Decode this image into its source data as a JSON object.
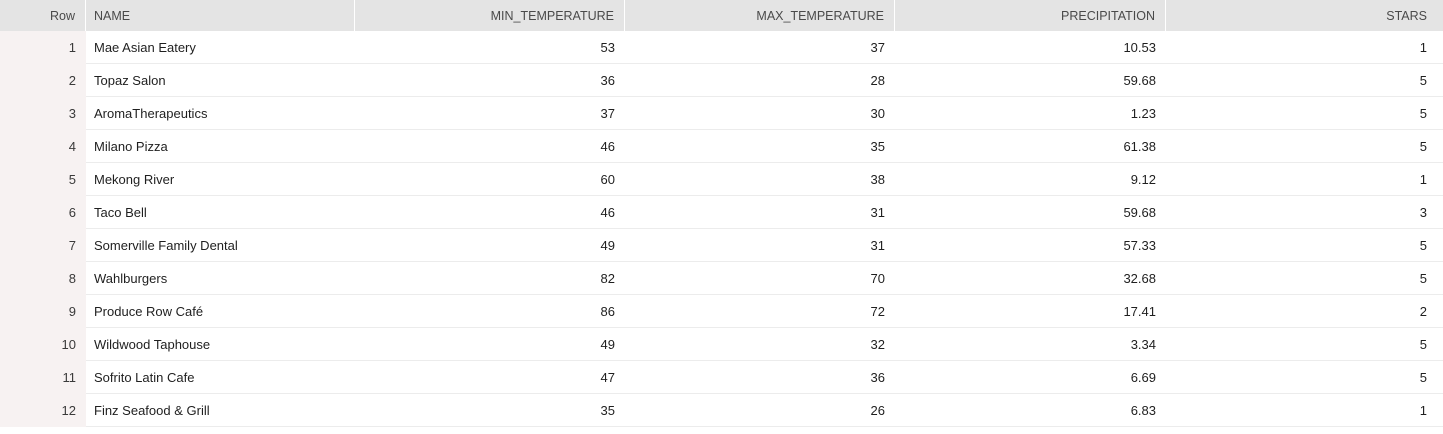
{
  "table": {
    "headers": {
      "row": "Row",
      "name": "NAME",
      "min_temperature": "MIN_TEMPERATURE",
      "max_temperature": "MAX_TEMPERATURE",
      "precipitation": "PRECIPITATION",
      "stars": "STARS"
    },
    "rows": [
      {
        "row": "1",
        "name": "Mae Asian Eatery",
        "min_temperature": "53",
        "max_temperature": "37",
        "precipitation": "10.53",
        "stars": "1"
      },
      {
        "row": "2",
        "name": "Topaz Salon",
        "min_temperature": "36",
        "max_temperature": "28",
        "precipitation": "59.68",
        "stars": "5"
      },
      {
        "row": "3",
        "name": "AromaTherapeutics",
        "min_temperature": "37",
        "max_temperature": "30",
        "precipitation": "1.23",
        "stars": "5"
      },
      {
        "row": "4",
        "name": "Milano Pizza",
        "min_temperature": "46",
        "max_temperature": "35",
        "precipitation": "61.38",
        "stars": "5"
      },
      {
        "row": "5",
        "name": "Mekong River",
        "min_temperature": "60",
        "max_temperature": "38",
        "precipitation": "9.12",
        "stars": "1"
      },
      {
        "row": "6",
        "name": "Taco Bell",
        "min_temperature": "46",
        "max_temperature": "31",
        "precipitation": "59.68",
        "stars": "3"
      },
      {
        "row": "7",
        "name": "Somerville Family Dental",
        "min_temperature": "49",
        "max_temperature": "31",
        "precipitation": "57.33",
        "stars": "5"
      },
      {
        "row": "8",
        "name": "Wahlburgers",
        "min_temperature": "82",
        "max_temperature": "70",
        "precipitation": "32.68",
        "stars": "5"
      },
      {
        "row": "9",
        "name": "Produce Row Café",
        "min_temperature": "86",
        "max_temperature": "72",
        "precipitation": "17.41",
        "stars": "2"
      },
      {
        "row": "10",
        "name": "Wildwood Taphouse",
        "min_temperature": "49",
        "max_temperature": "32",
        "precipitation": "3.34",
        "stars": "5"
      },
      {
        "row": "11",
        "name": "Sofrito Latin Cafe",
        "min_temperature": "47",
        "max_temperature": "36",
        "precipitation": "6.69",
        "stars": "5"
      },
      {
        "row": "12",
        "name": "Finz Seafood & Grill",
        "min_temperature": "35",
        "max_temperature": "26",
        "precipitation": "6.83",
        "stars": "1"
      }
    ]
  },
  "colors": {
    "header_bg": "#e4e4e4",
    "row_number_bg": "#f7f2f2",
    "row_border": "#ececec"
  }
}
